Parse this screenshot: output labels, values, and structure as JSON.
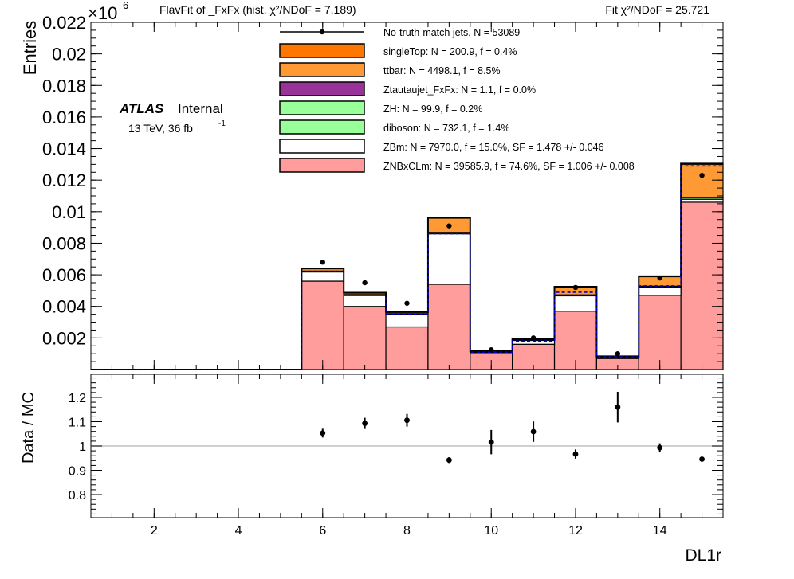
{
  "header": {
    "left_title": "FlavFit of _FxFx (hist.   χ²/NDoF = 7.189)",
    "right_title": "Fit  χ²/NDoF = 25.721"
  },
  "atlas": {
    "label": "ATLAS",
    "sublabel": "Internal",
    "energy": "13 TeV,  36 fb",
    "lumi_sup": "-1"
  },
  "chart_data": [
    {
      "type": "bar",
      "stacked": true,
      "ylabel": "Entries",
      "y_multiplier": "×10",
      "y_multiplier_exp": "6",
      "ylim": [
        0,
        0.022
      ],
      "yticks": [
        0.002,
        0.004,
        0.006,
        0.008,
        0.01,
        0.012,
        0.014,
        0.016,
        0.018,
        0.02,
        0.022
      ],
      "ytick_labels": [
        "0.002",
        "0.004",
        "0.006",
        "0.008",
        "0.01",
        "0.012",
        "0.014",
        "0.016",
        "0.018",
        "0.02",
        "0.022"
      ],
      "xlim": [
        0.5,
        15.5
      ],
      "bins": [
        1,
        2,
        3,
        4,
        5,
        6,
        7,
        8,
        9,
        10,
        11,
        12,
        13,
        14,
        15
      ],
      "series": [
        {
          "name": "ZNBxCLm",
          "legend": "ZNBxCLm: N = 39585.9, f = 74.6%, SF = 1.006 +/- 0.008",
          "color": "#ff9d9d",
          "values": [
            0,
            0,
            0,
            0,
            0,
            0.0056,
            0.004,
            0.0027,
            0.0054,
            0.001,
            0.0016,
            0.0037,
            0.0007,
            0.0047,
            0.0106
          ]
        },
        {
          "name": "ZBm",
          "legend": "ZBm: N = 7970.0, f = 15.0%, SF = 1.478 +/- 0.046",
          "color": "#ffffff",
          "values": [
            0,
            0,
            0,
            0,
            0,
            0.00058,
            0.00069,
            0.00079,
            0.0032,
            0.0001,
            0.00025,
            0.00097,
            0.0001,
            0.00051,
            0.00019
          ]
        },
        {
          "name": "diboson",
          "legend": "diboson: N = 732.1, f = 1.4%",
          "color": "#99ff99",
          "values": [
            0,
            0,
            0,
            0,
            0,
            5e-05,
            5e-05,
            4e-05,
            7e-05,
            1e-05,
            2e-05,
            5e-05,
            1e-05,
            6e-05,
            0.0001
          ]
        },
        {
          "name": "ZH",
          "legend": "ZH: N = 99.9, f = 0.2%",
          "color": "#99ff99",
          "values": [
            0,
            0,
            0,
            0,
            0,
            1e-05,
            1e-05,
            1e-05,
            2e-05,
            0,
            0,
            1e-05,
            0,
            1e-05,
            2e-05
          ]
        },
        {
          "name": "Ztautaujet_FxFx",
          "legend": "Ztautaujet_FxFx: N = 1.1, f = 0.0%",
          "color": "#993399",
          "values": [
            0,
            0,
            0,
            0,
            0,
            0,
            0,
            0,
            0,
            0,
            0,
            0,
            0,
            0,
            0
          ]
        },
        {
          "name": "ttbar",
          "legend": "ttbar: N = 4498.1, f = 8.5%",
          "color": "#ff9933",
          "values": [
            0,
            0,
            0,
            0,
            0,
            0.00015,
            0.0001,
            0.0001,
            0.0009,
            5e-05,
            5e-05,
            0.0005,
            3e-05,
            0.0006,
            0.0021
          ]
        },
        {
          "name": "singleTop",
          "legend": "singleTop: N = 200.9, f = 0.4%",
          "color": "#ff7700",
          "values": [
            0,
            0,
            0,
            0,
            0,
            2e-05,
            2e-05,
            1e-05,
            3e-05,
            0,
            1e-05,
            2e-05,
            0,
            3e-05,
            4e-05
          ]
        }
      ],
      "prefit_dashed": [
        0,
        0,
        0,
        0,
        0,
        0.0062,
        0.0047,
        0.0035,
        0.0086,
        0.0011,
        0.0018,
        0.0049,
        0.0008,
        0.0053,
        0.0129
      ],
      "data": {
        "name": "No-truth-match jets",
        "legend": "No-truth-match jets, N = 53089",
        "x": [
          6,
          7,
          8,
          9,
          10,
          11,
          12,
          13,
          14,
          15
        ],
        "y": [
          0.0068,
          0.0055,
          0.0042,
          0.0091,
          0.00125,
          0.002,
          0.0052,
          0.001,
          0.0058,
          0.0123
        ]
      }
    },
    {
      "type": "scatter",
      "ylabel": "Data / MC",
      "xlabel": "DL1r",
      "ylim": [
        0.705,
        1.295
      ],
      "yticks": [
        0.8,
        0.9,
        1,
        1.1,
        1.2
      ],
      "ytick_labels": [
        "0.8",
        "0.9",
        "1",
        "1.1",
        "1.2"
      ],
      "xlim": [
        0.5,
        15.5
      ],
      "xticks": [
        2,
        4,
        6,
        8,
        10,
        12,
        14
      ],
      "xtick_labels": [
        "2",
        "4",
        "6",
        "8",
        "10",
        "12",
        "14"
      ],
      "reference_line": 1,
      "points": {
        "x": [
          6,
          7,
          8,
          9,
          10,
          11,
          12,
          13,
          14,
          15
        ],
        "y": [
          1.053,
          1.093,
          1.106,
          0.942,
          1.016,
          1.059,
          0.967,
          1.16,
          0.993,
          0.946
        ],
        "err": [
          0.018,
          0.023,
          0.026,
          0.012,
          0.05,
          0.042,
          0.019,
          0.063,
          0.018,
          0.008
        ]
      }
    }
  ]
}
